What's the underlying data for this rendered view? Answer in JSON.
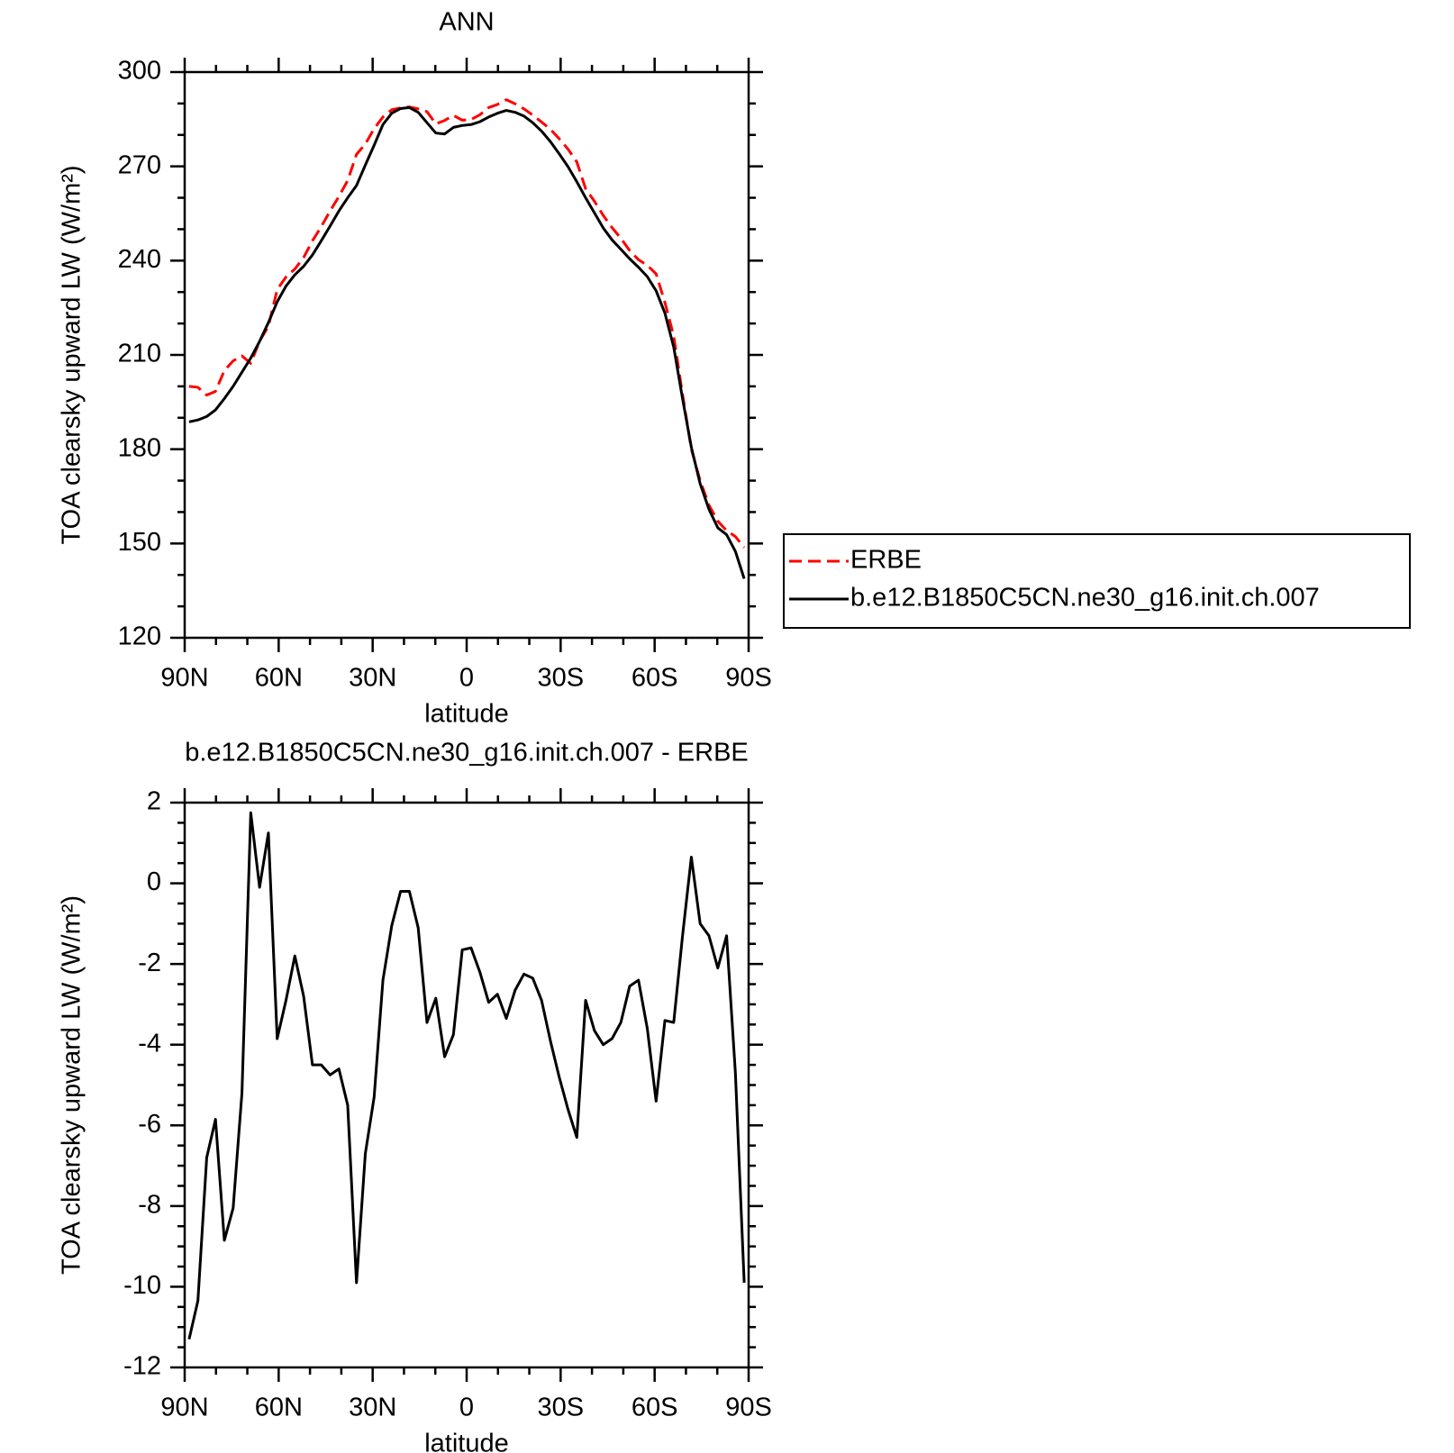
{
  "chart_data": [
    {
      "type": "line",
      "title": "ANN",
      "xlabel": "latitude",
      "ylabel": "TOA clearsky upward LW (W/m²)",
      "x": [
        88.59,
        85.78,
        82.97,
        80.16,
        77.34,
        74.53,
        71.72,
        68.91,
        66.09,
        63.28,
        60.47,
        57.66,
        54.84,
        52.03,
        49.22,
        46.41,
        43.59,
        40.78,
        37.97,
        35.16,
        32.34,
        29.53,
        26.72,
        23.91,
        21.09,
        18.28,
        15.47,
        12.66,
        9.84,
        7.03,
        4.22,
        1.41,
        -1.41,
        -4.22,
        -7.03,
        -9.84,
        -12.66,
        -15.47,
        -18.28,
        -21.09,
        -23.91,
        -26.72,
        -29.53,
        -32.34,
        -35.16,
        -37.97,
        -40.78,
        -43.59,
        -46.41,
        -49.22,
        -52.03,
        -54.84,
        -57.66,
        -60.47,
        -63.28,
        -66.09,
        -68.91,
        -71.72,
        -74.53,
        -77.34,
        -80.16,
        -82.97,
        -85.78,
        -88.59
      ],
      "xlim": [
        90,
        -90
      ],
      "xticks": [
        {
          "value": 90,
          "label": "90N"
        },
        {
          "value": 60,
          "label": "60N"
        },
        {
          "value": 30,
          "label": "30N"
        },
        0,
        {
          "value": -30,
          "label": "30S"
        },
        {
          "value": -60,
          "label": "60S"
        },
        {
          "value": -90,
          "label": "90S"
        }
      ],
      "ylim": [
        120,
        300
      ],
      "yticks": [
        120,
        150,
        180,
        210,
        240,
        270,
        300
      ],
      "legend": "right",
      "series": [
        {
          "name": "ERBE",
          "color": "#ff0000",
          "linestyle": "dashed",
          "values": [
            200.0,
            199.7,
            197.2,
            198.4,
            205.0,
            208.1,
            209.7,
            207.3,
            214.4,
            219.1,
            230.8,
            234.8,
            237.3,
            241.0,
            246.3,
            250.8,
            255.8,
            260.4,
            265.5,
            273.8,
            277.1,
            282.0,
            285.7,
            288.0,
            288.6,
            288.9,
            288.3,
            287.4,
            283.5,
            284.6,
            286.2,
            284.7,
            284.9,
            286.4,
            288.7,
            289.7,
            291.2,
            289.9,
            288.3,
            286.3,
            284.1,
            281.8,
            278.8,
            275.5,
            271.4,
            262.9,
            258.9,
            254.4,
            250.5,
            247.1,
            243.2,
            240.3,
            238.5,
            235.8,
            226.7,
            216.0,
            197.4,
            180.0,
            170.0,
            162.2,
            157.1,
            154.1,
            152.2,
            148.7
          ]
        },
        {
          "name": "b.e12.B1850C5CN.ne30_g16.init.ch.007",
          "color": "#000000",
          "linestyle": "solid",
          "values": [
            188.7,
            189.3,
            190.4,
            192.5,
            196.1,
            200.0,
            204.5,
            209.0,
            214.3,
            220.3,
            226.9,
            231.9,
            235.5,
            238.2,
            241.8,
            246.3,
            251.0,
            255.8,
            260.0,
            263.9,
            270.4,
            276.7,
            283.3,
            286.9,
            288.4,
            288.7,
            287.2,
            283.9,
            280.6,
            280.3,
            282.4,
            283.0,
            283.3,
            284.2,
            285.7,
            286.9,
            287.8,
            287.2,
            286.0,
            283.9,
            281.2,
            277.9,
            274.0,
            269.9,
            265.1,
            260.0,
            255.2,
            250.4,
            246.6,
            243.6,
            240.6,
            237.9,
            234.9,
            230.4,
            223.3,
            212.5,
            196.1,
            180.6,
            169.0,
            160.9,
            155.0,
            152.8,
            147.5,
            138.8
          ]
        }
      ]
    },
    {
      "type": "line",
      "title": "b.e12.B1850C5CN.ne30_g16.init.ch.007 - ERBE",
      "xlabel": "latitude",
      "ylabel": "TOA clearsky upward LW (W/m²)",
      "x": [
        88.59,
        85.78,
        82.97,
        80.16,
        77.34,
        74.53,
        71.72,
        68.91,
        66.09,
        63.28,
        60.47,
        57.66,
        54.84,
        52.03,
        49.22,
        46.41,
        43.59,
        40.78,
        37.97,
        35.16,
        32.34,
        29.53,
        26.72,
        23.91,
        21.09,
        18.28,
        15.47,
        12.66,
        9.84,
        7.03,
        4.22,
        1.41,
        -1.41,
        -4.22,
        -7.03,
        -9.84,
        -12.66,
        -15.47,
        -18.28,
        -21.09,
        -23.91,
        -26.72,
        -29.53,
        -32.34,
        -35.16,
        -37.97,
        -40.78,
        -43.59,
        -46.41,
        -49.22,
        -52.03,
        -54.84,
        -57.66,
        -60.47,
        -63.28,
        -66.09,
        -68.91,
        -71.72,
        -74.53,
        -77.34,
        -80.16,
        -82.97,
        -85.78,
        -88.59
      ],
      "xlim": [
        90,
        -90
      ],
      "xticks": [
        {
          "value": 90,
          "label": "90N"
        },
        {
          "value": 60,
          "label": "60N"
        },
        {
          "value": 30,
          "label": "30N"
        },
        0,
        {
          "value": -30,
          "label": "30S"
        },
        {
          "value": -60,
          "label": "60S"
        },
        {
          "value": -90,
          "label": "90S"
        }
      ],
      "ylim": [
        -12,
        2
      ],
      "yticks": [
        -12,
        -10,
        -8,
        -6,
        -4,
        -2,
        0,
        2
      ],
      "color": "#000000",
      "values": [
        -11.3,
        -10.35,
        -6.8,
        -5.85,
        -8.85,
        -8.05,
        -5.2,
        1.75,
        -0.1,
        1.25,
        -3.85,
        -2.9,
        -1.8,
        -2.8,
        -4.5,
        -4.5,
        -4.75,
        -4.6,
        -5.5,
        -9.9,
        -6.7,
        -5.3,
        -2.4,
        -1.05,
        -0.2,
        -0.2,
        -1.1,
        -3.45,
        -2.85,
        -4.3,
        -3.75,
        -1.65,
        -1.6,
        -2.2,
        -2.95,
        -2.75,
        -3.35,
        -2.65,
        -2.25,
        -2.35,
        -2.9,
        -3.9,
        -4.8,
        -5.6,
        -6.3,
        -2.9,
        -3.65,
        -4.0,
        -3.85,
        -3.45,
        -2.55,
        -2.4,
        -3.6,
        -5.4,
        -3.4,
        -3.45,
        -1.3,
        0.65,
        -1.0,
        -1.3,
        -2.1,
        -1.3,
        -4.7,
        -9.9
      ]
    }
  ]
}
